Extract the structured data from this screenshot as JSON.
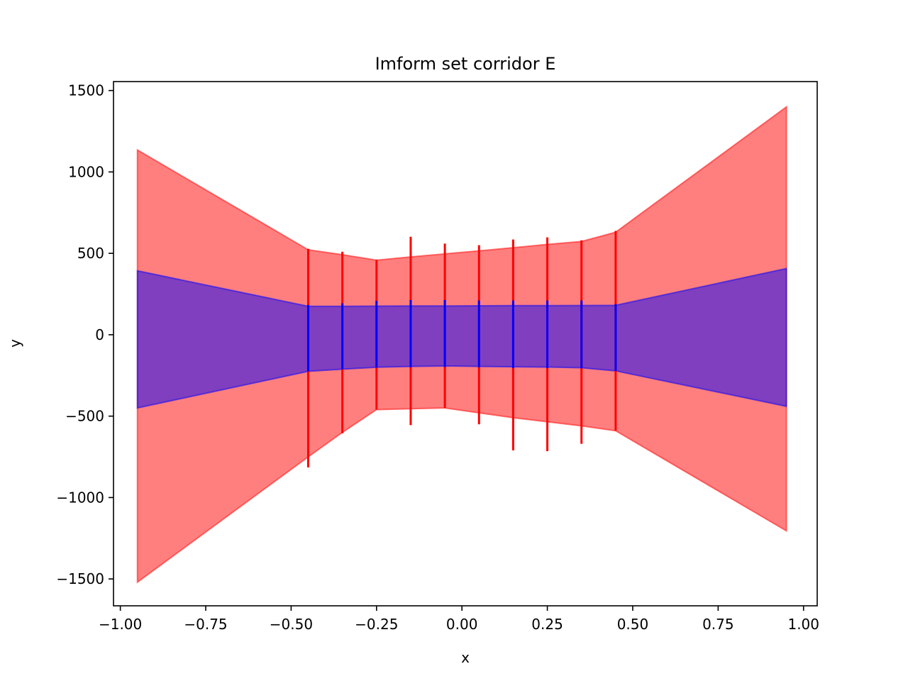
{
  "chart_data": {
    "type": "area",
    "title": "Imform set corridor E",
    "xlabel": "x",
    "ylabel": "y",
    "xlim": [
      -1.02,
      1.04
    ],
    "ylim": [
      -1665,
      1555
    ],
    "xticks": [
      -1.0,
      -0.75,
      -0.5,
      -0.25,
      0.0,
      0.25,
      0.5,
      0.75,
      1.0
    ],
    "xtick_labels": [
      "−1.00",
      "−0.75",
      "−0.50",
      "−0.25",
      "0.00",
      "0.25",
      "0.50",
      "0.75",
      "1.00"
    ],
    "yticks": [
      -1500,
      -1000,
      -500,
      0,
      500,
      1000,
      1500
    ],
    "ytick_labels": [
      "−1500",
      "−1000",
      "−500",
      "0",
      "500",
      "1000",
      "1500"
    ],
    "grid": false,
    "colors": {
      "outer": "#ff0000",
      "inner": "#0000ff"
    },
    "outer_band": {
      "x": [
        -0.95,
        -0.45,
        -0.35,
        -0.25,
        -0.15,
        -0.05,
        0.05,
        0.15,
        0.25,
        0.35,
        0.45,
        0.95
      ],
      "upper": [
        1135,
        522,
        492,
        458,
        478,
        497,
        515,
        535,
        555,
        573,
        630,
        1400
      ],
      "lower": [
        -1520,
        -750,
        -600,
        -460,
        -455,
        -450,
        -480,
        -510,
        -535,
        -560,
        -590,
        -1205
      ]
    },
    "inner_band": {
      "x": [
        -0.95,
        -0.45,
        -0.35,
        -0.25,
        -0.15,
        -0.05,
        0.05,
        0.15,
        0.25,
        0.35,
        0.45,
        0.95
      ],
      "upper": [
        393,
        175,
        175,
        176,
        177,
        177,
        178,
        179,
        179,
        180,
        181,
        407
      ],
      "lower": [
        -450,
        -225,
        -212,
        -200,
        -195,
        -192,
        -195,
        -197,
        -199,
        -203,
        -222,
        -440
      ]
    },
    "error_bars": [
      {
        "x": -0.45,
        "outer": [
          -815,
          528
        ],
        "inner": [
          -225,
          183
        ]
      },
      {
        "x": -0.35,
        "outer": [
          -605,
          510
        ],
        "inner": [
          -212,
          193
        ]
      },
      {
        "x": -0.25,
        "outer": [
          -460,
          460
        ],
        "inner": [
          -202,
          208
        ]
      },
      {
        "x": -0.15,
        "outer": [
          -555,
          602
        ],
        "inner": [
          -200,
          213
        ]
      },
      {
        "x": -0.05,
        "outer": [
          -450,
          560
        ],
        "inner": [
          -198,
          213
        ]
      },
      {
        "x": 0.05,
        "outer": [
          -550,
          550
        ],
        "inner": [
          -200,
          210
        ]
      },
      {
        "x": 0.15,
        "outer": [
          -710,
          585
        ],
        "inner": [
          -205,
          210
        ]
      },
      {
        "x": 0.25,
        "outer": [
          -715,
          598
        ],
        "inner": [
          -205,
          210
        ]
      },
      {
        "x": 0.35,
        "outer": [
          -670,
          580
        ],
        "inner": [
          -206,
          210
        ]
      },
      {
        "x": 0.45,
        "outer": [
          -590,
          638
        ],
        "inner": [
          -222,
          188
        ]
      }
    ]
  }
}
